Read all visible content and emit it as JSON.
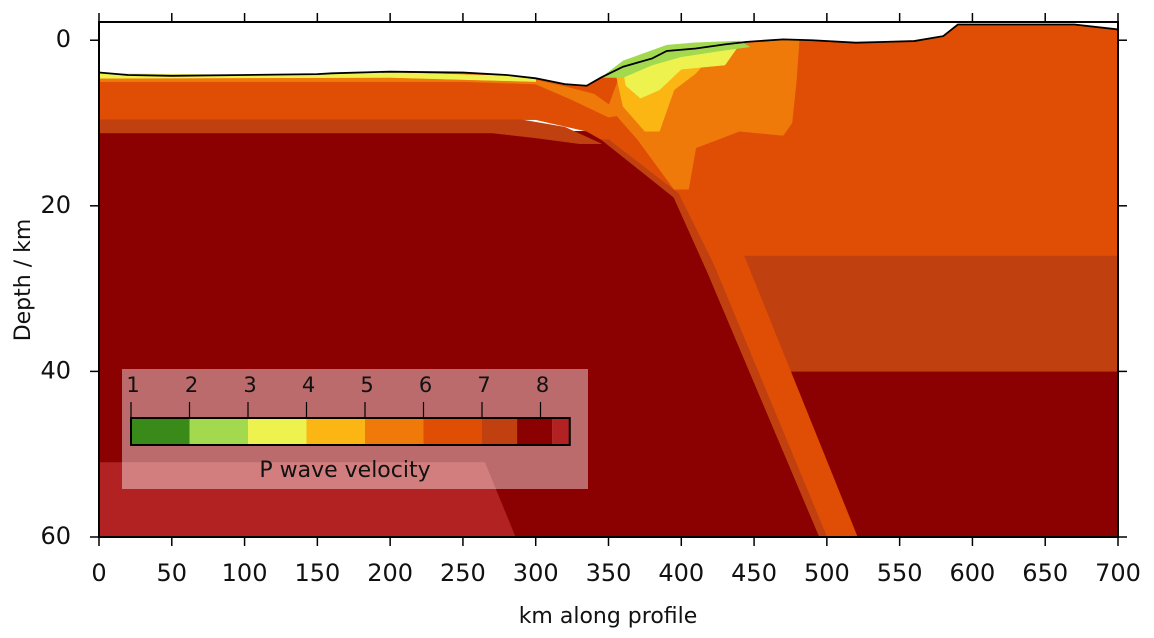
{
  "chart_data": {
    "type": "section",
    "x_label": "km along profile",
    "y_label": "Depth / km",
    "xlim": [
      0,
      700
    ],
    "ylim": [
      60,
      -2.2
    ],
    "xticks": [
      0,
      50,
      100,
      150,
      200,
      250,
      300,
      350,
      400,
      450,
      500,
      550,
      600,
      650,
      700
    ],
    "yticks": [
      0,
      20,
      40,
      60
    ],
    "surface": {
      "x": [
        0,
        20,
        50,
        100,
        150,
        160,
        200,
        250,
        280,
        300,
        320,
        335,
        345,
        360,
        380,
        390,
        410,
        430,
        445,
        470,
        490,
        520,
        560,
        580,
        590,
        670,
        700
      ],
      "depth": [
        3.9,
        4.2,
        4.3,
        4.2,
        4.1,
        4.0,
        3.8,
        3.9,
        4.2,
        4.6,
        5.3,
        5.5,
        4.5,
        3.2,
        2.2,
        1.3,
        1.0,
        0.5,
        0.2,
        -0.1,
        0,
        0.3,
        0.1,
        -0.5,
        -1.9,
        -1.9,
        -1.3
      ]
    },
    "regions": [
      {
        "velocity": 8.0,
        "x": [
          0,
          700,
          700,
          0
        ],
        "depth": [
          11,
          11,
          60,
          60
        ]
      },
      {
        "velocity": 8.3,
        "x": [
          0,
          265,
          286,
          0
        ],
        "depth": [
          51,
          51,
          60,
          60
        ]
      },
      {
        "velocity": 7.3,
        "x": [
          430,
          700,
          700,
          470,
          452
        ],
        "depth": [
          26,
          26,
          40,
          40,
          30
        ]
      },
      {
        "velocity": 6.5,
        "x": [
          0,
          20,
          50,
          100,
          150,
          160,
          200,
          250,
          280,
          300,
          320,
          335,
          345,
          360,
          380,
          390,
          410,
          430,
          445,
          470,
          490,
          520,
          560,
          580,
          590,
          670,
          700,
          700,
          443,
          521,
          495,
          418,
          395,
          365,
          335,
          300,
          0
        ],
        "depth": [
          3.9,
          4.2,
          4.3,
          4.2,
          4.1,
          4.0,
          3.8,
          3.9,
          4.2,
          4.6,
          5.3,
          5.5,
          4.5,
          3.2,
          2.2,
          1.3,
          1.0,
          0.5,
          0.2,
          -0.1,
          0,
          0.3,
          0.1,
          -0.5,
          -1.9,
          -1.9,
          -1.3,
          26,
          26,
          60,
          60,
          28,
          19,
          14,
          11,
          9.6,
          9.6
        ]
      },
      {
        "velocity": 7.2,
        "x": [
          0,
          290,
          320,
          345,
          330,
          300,
          270,
          0
        ],
        "depth": [
          9.6,
          9.6,
          10.5,
          12.5,
          12.5,
          11.8,
          11.2,
          11.2
        ]
      },
      {
        "velocity": 7.3,
        "x": [
          345,
          395,
          418,
          495,
          500,
          422,
          398,
          350
        ],
        "depth": [
          12,
          19,
          28,
          60,
          60,
          27,
          18.5,
          12
        ]
      },
      {
        "velocity": 5.5,
        "x": [
          0,
          150,
          250,
          300,
          320,
          340,
          360,
          350,
          325,
          300,
          250,
          0
        ],
        "depth": [
          4.4,
          4.3,
          4.1,
          4.8,
          5.6,
          6.5,
          9,
          9.3,
          7.2,
          5.3,
          5.0,
          5.0
        ]
      },
      {
        "velocity": 3.5,
        "x": [
          0,
          100,
          200,
          280,
          300,
          300,
          200,
          0
        ],
        "depth": [
          4.0,
          4.2,
          3.9,
          4.3,
          4.7,
          5.0,
          4.5,
          4.6
        ]
      },
      {
        "velocity": 5.5,
        "x": [
          360,
          380,
          430,
          445,
          470,
          481,
          479,
          476,
          470,
          440,
          410,
          405,
          395,
          370,
          350
        ],
        "depth": [
          3.2,
          2.2,
          0.5,
          0.2,
          -0.1,
          0,
          5,
          10,
          11.5,
          11,
          13,
          18,
          18,
          12,
          8
        ]
      },
      {
        "velocity": 4.5,
        "x": [
          355,
          390,
          420,
          410,
          395,
          385,
          375,
          360
        ],
        "depth": [
          4,
          2,
          2,
          4,
          6,
          11,
          11,
          8
        ]
      },
      {
        "velocity": 3.5,
        "x": [
          360,
          395,
          440,
          430,
          400,
          385,
          372,
          362
        ],
        "depth": [
          3.5,
          1.5,
          0.5,
          3,
          3.5,
          6,
          7,
          5.5
        ]
      },
      {
        "velocity": 2.5,
        "x": [
          345,
          360,
          390,
          410,
          440,
          447,
          430,
          400,
          380,
          360
        ],
        "depth": [
          4.5,
          2.5,
          0.6,
          0.3,
          0.1,
          0.8,
          1.2,
          2,
          3,
          4.5
        ]
      }
    ],
    "colorbar": {
      "label": "P wave velocity",
      "ticks": [
        1,
        2,
        3,
        4,
        5,
        6,
        7,
        8
      ],
      "boundaries": [
        1,
        2,
        3,
        4,
        5,
        6,
        7,
        7.6,
        8.2,
        8.5
      ],
      "colors": [
        "#3a8a1a",
        "#a2d94f",
        "#eef24f",
        "#fbb614",
        "#ef7a0a",
        "#e04e05",
        "#c04010",
        "#8b0000",
        "#b22222"
      ]
    }
  }
}
